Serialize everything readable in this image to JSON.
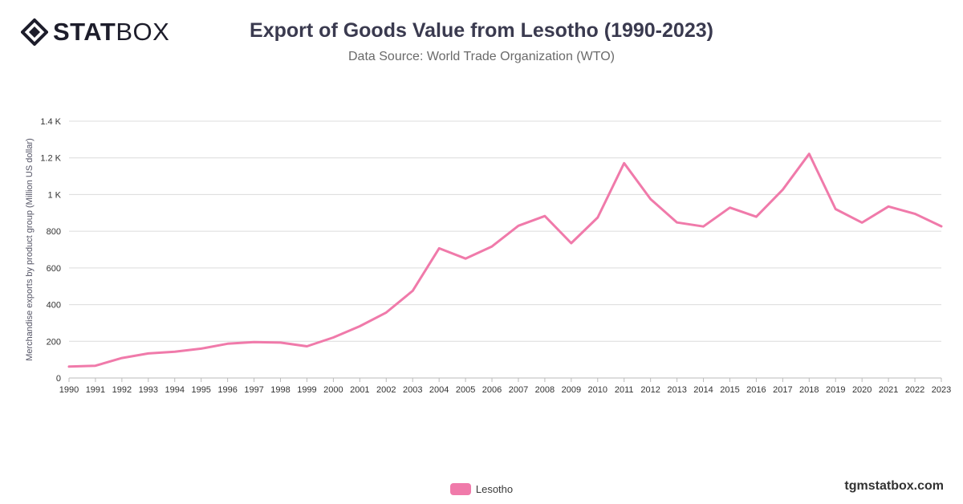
{
  "header": {
    "logo_bold": "STAT",
    "logo_light": "BOX",
    "title": "Export of Goods Value from Lesotho (1990-2023)",
    "subtitle": "Data Source: World Trade Organization (WTO)"
  },
  "footer": {
    "watermark": "tgmstatbox.com"
  },
  "colors": {
    "series": "#f07aaa",
    "grid": "#dcdcdc",
    "axis_text": "#333333",
    "ylabel": "#555566"
  },
  "chart_data": {
    "type": "line",
    "title": "Export of Goods Value from Lesotho (1990-2023)",
    "subtitle": "Data Source: World Trade Organization (WTO)",
    "xlabel": "",
    "ylabel": "Merchandise exports by product group (Million US dollar)",
    "ylim": [
      0,
      1400
    ],
    "yticks": [
      0,
      200,
      400,
      600,
      800,
      1000,
      1200,
      1400
    ],
    "ytick_labels": [
      "0",
      "200",
      "400",
      "600",
      "800",
      "1 K",
      "1.2 K",
      "1.4 K"
    ],
    "grid": true,
    "legend_position": "bottom-center",
    "categories": [
      "1990",
      "1991",
      "1992",
      "1993",
      "1994",
      "1995",
      "1996",
      "1997",
      "1998",
      "1999",
      "2000",
      "2001",
      "2002",
      "2003",
      "2004",
      "2005",
      "2006",
      "2007",
      "2008",
      "2009",
      "2010",
      "2011",
      "2012",
      "2013",
      "2014",
      "2015",
      "2016",
      "2017",
      "2018",
      "2019",
      "2020",
      "2021",
      "2022",
      "2023"
    ],
    "series": [
      {
        "name": "Lesotho",
        "color": "#f07aaa",
        "values": [
          62,
          67,
          109,
          134,
          143,
          160,
          187,
          196,
          193,
          173,
          221,
          282,
          357,
          475,
          707,
          651,
          717,
          830,
          883,
          735,
          875,
          1171,
          975,
          848,
          826,
          929,
          879,
          1027,
          1222,
          921,
          847,
          935,
          895,
          827
        ]
      }
    ]
  }
}
